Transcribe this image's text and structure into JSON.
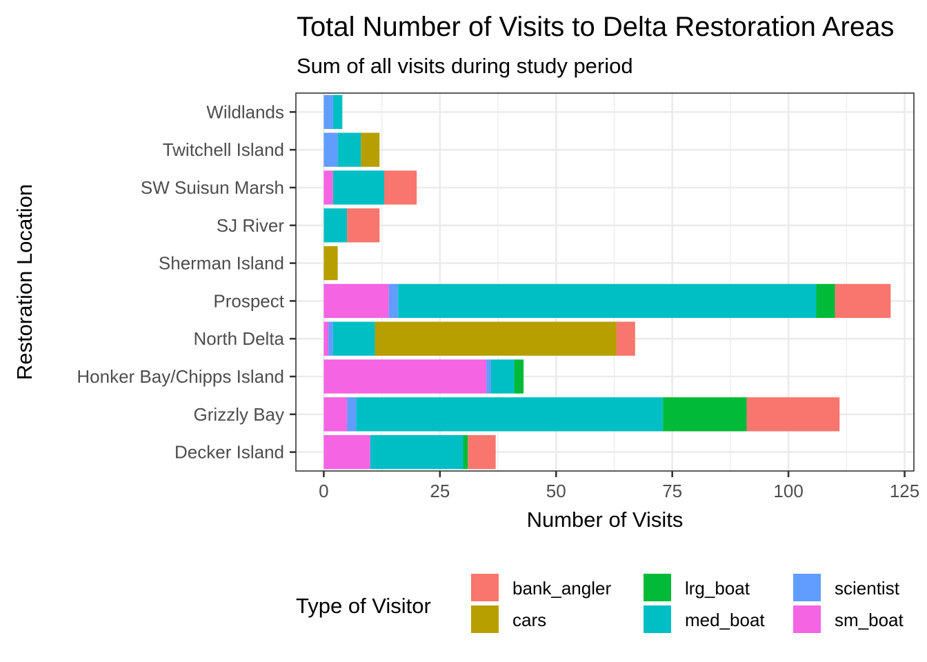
{
  "chart_data": {
    "type": "bar",
    "orientation": "horizontal",
    "stacked": true,
    "title": "Total Number of Visits to Delta Restoration Areas",
    "subtitle": "Sum of all visits during study period",
    "xlabel": "Number of Visits",
    "ylabel": "Restoration Location",
    "xlim": [
      -6,
      127
    ],
    "xticks": [
      "0",
      "25",
      "50",
      "75",
      "100",
      "125"
    ],
    "categories": [
      "Decker Island",
      "Grizzly Bay",
      "Honker Bay/Chipps Island",
      "North Delta",
      "Prospect",
      "Sherman Island",
      "SJ River",
      "SW Suisun Marsh",
      "Twitchell Island",
      "Wildlands"
    ],
    "stack_order": [
      "sm_boat",
      "scientist",
      "med_boat",
      "lrg_boat",
      "cars",
      "bank_angler"
    ],
    "series": [
      {
        "name": "bank_angler",
        "color": "#F8766D",
        "values": [
          6,
          20,
          0,
          4,
          12,
          0,
          7,
          7,
          0,
          0
        ]
      },
      {
        "name": "cars",
        "color": "#B79F00",
        "values": [
          0,
          0,
          0,
          52,
          0,
          3,
          0,
          0,
          4,
          0
        ]
      },
      {
        "name": "lrg_boat",
        "color": "#00BA38",
        "values": [
          1,
          18,
          2,
          0,
          4,
          0,
          0,
          0,
          0,
          0
        ]
      },
      {
        "name": "med_boat",
        "color": "#00BFC4",
        "values": [
          20,
          66,
          5,
          9,
          90,
          0,
          5,
          11,
          5,
          2
        ]
      },
      {
        "name": "scientist",
        "color": "#619CFF",
        "values": [
          0,
          2,
          1,
          1,
          2,
          0,
          0,
          0,
          3,
          2
        ]
      },
      {
        "name": "sm_boat",
        "color": "#F564E3",
        "values": [
          10,
          5,
          35,
          1,
          14,
          0,
          0,
          2,
          0,
          0
        ]
      }
    ],
    "grid": true,
    "legend": {
      "title": "Type of Visitor",
      "position": "bottom",
      "items": [
        "bank_angler",
        "cars",
        "lrg_boat",
        "med_boat",
        "scientist",
        "sm_boat"
      ]
    }
  }
}
